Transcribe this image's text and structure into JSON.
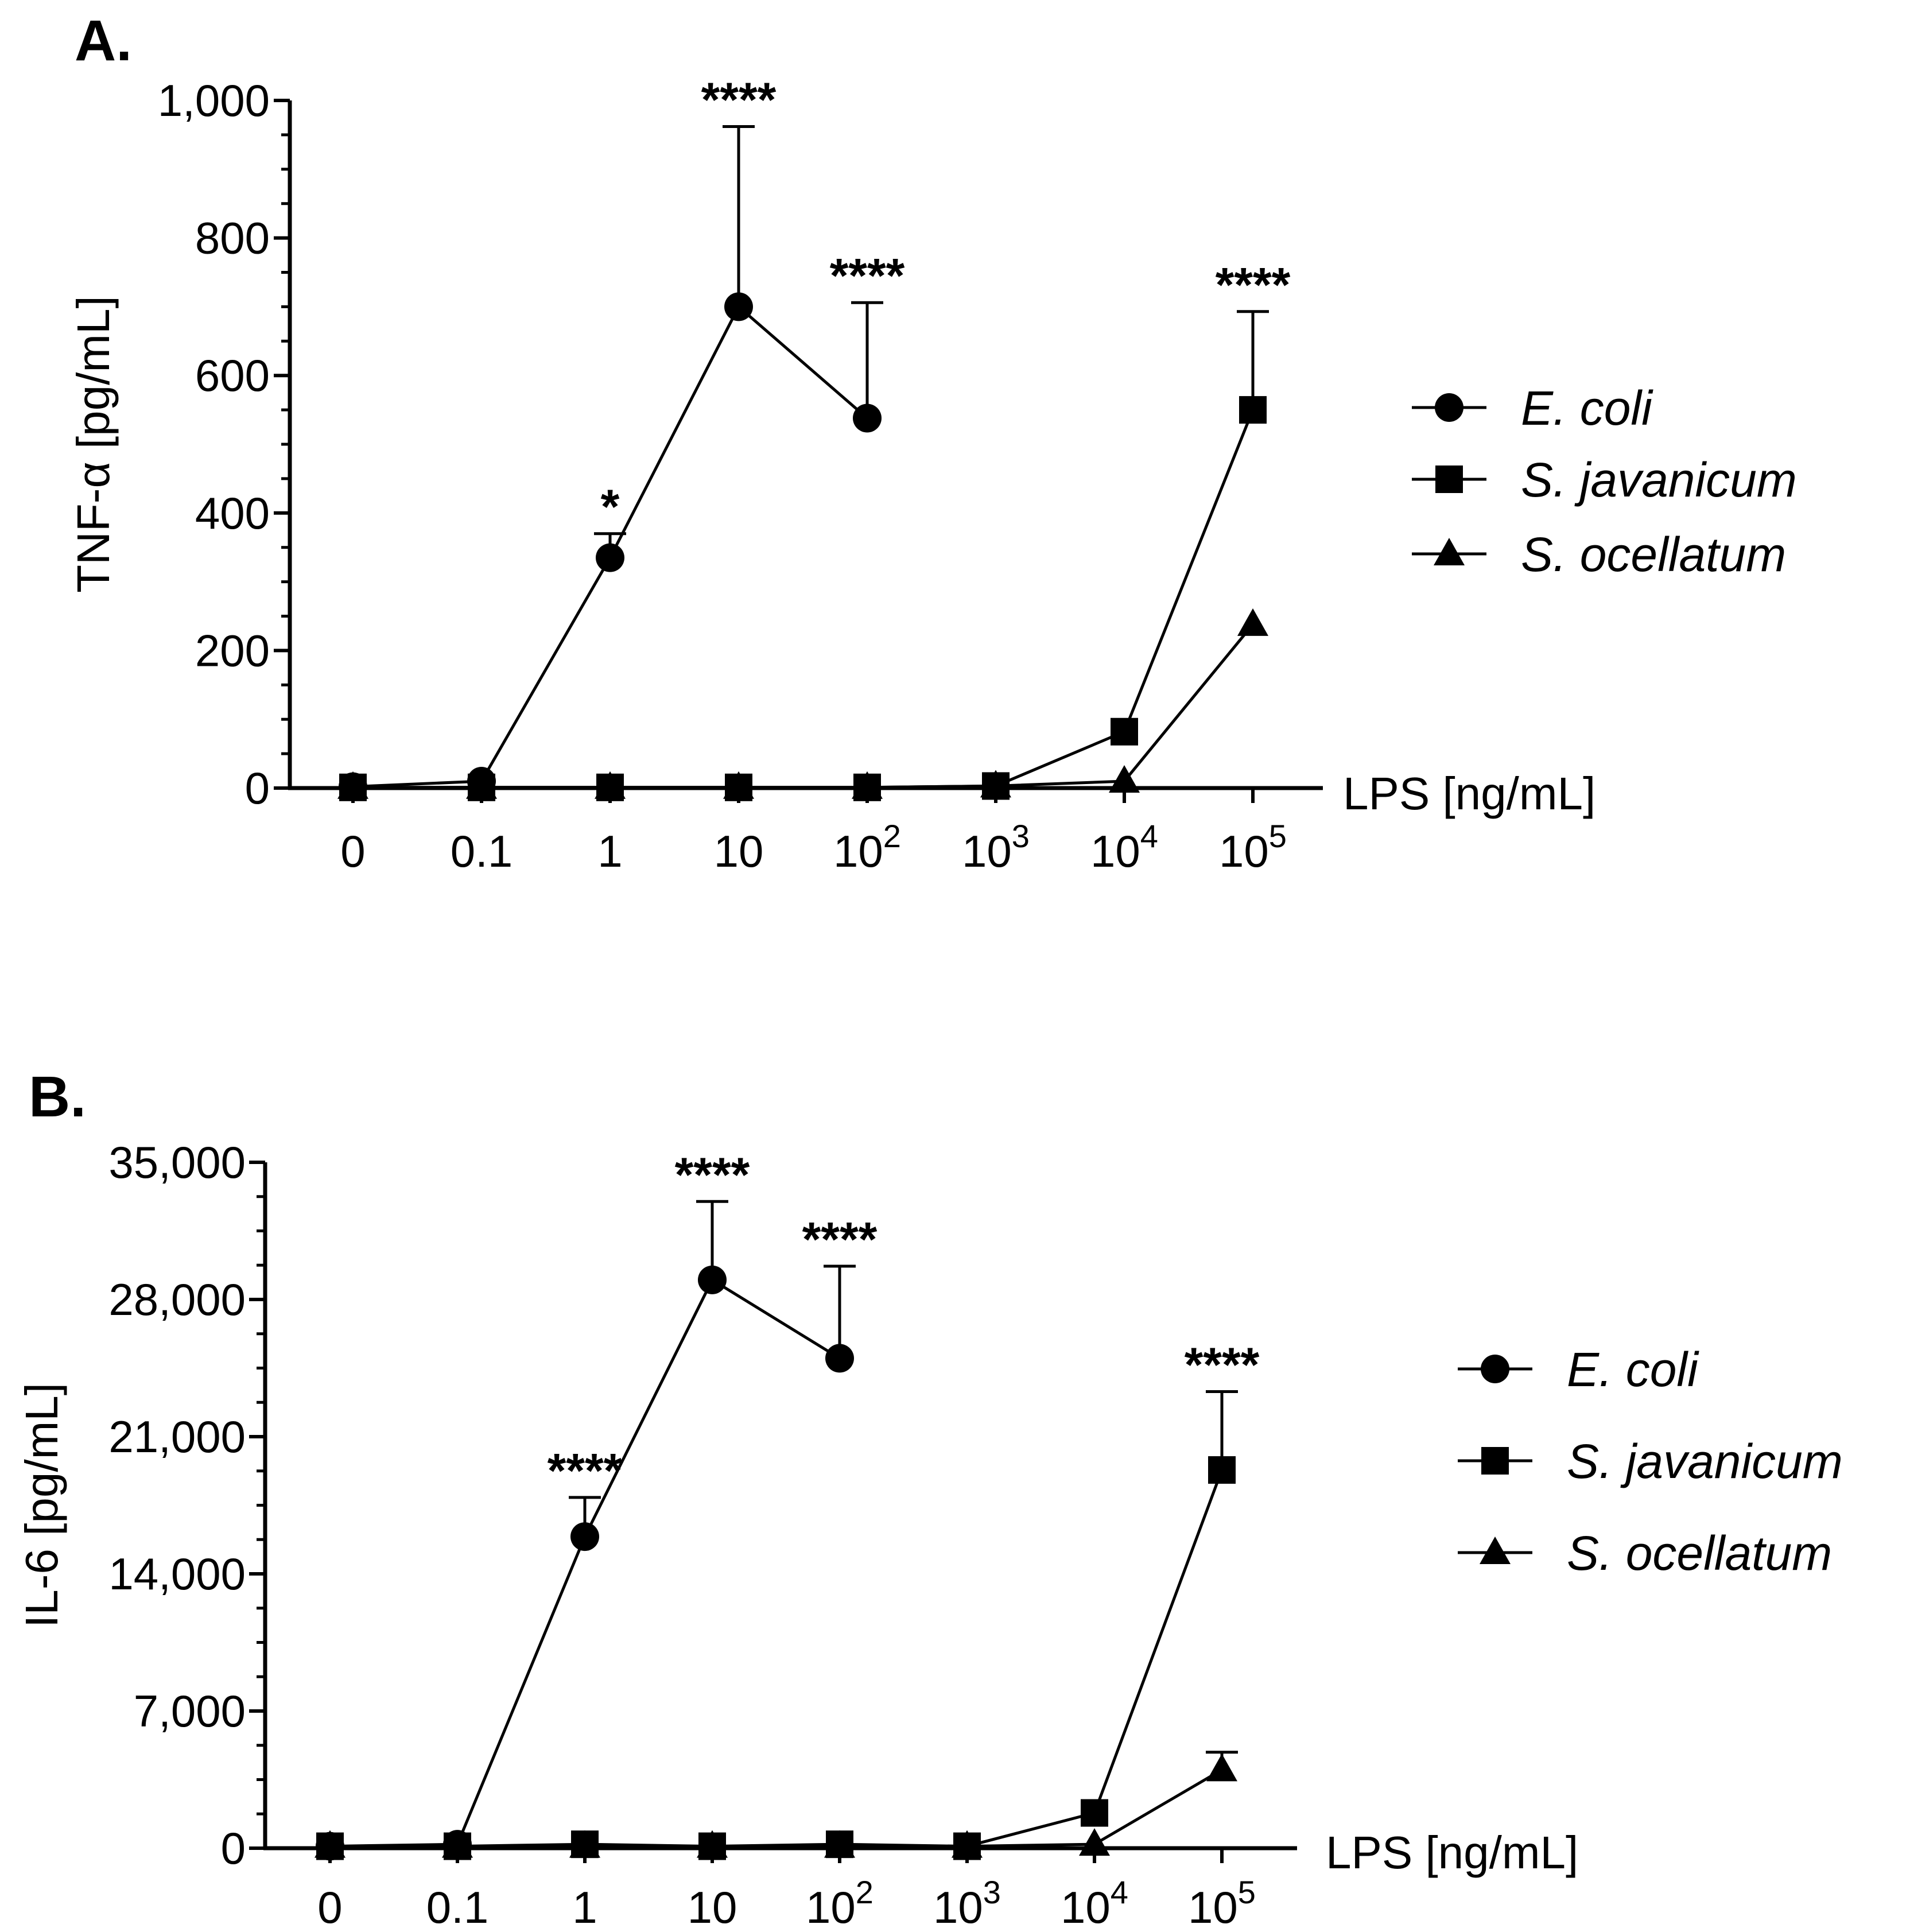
{
  "chart_data": [
    {
      "type": "line",
      "panel": "A.",
      "ylabel": "TNF-α [pg/mL]",
      "xlabel": "LPS [ng/mL]",
      "ylim": [
        0,
        1000
      ],
      "yticks": [
        0,
        200,
        400,
        600,
        800,
        1000
      ],
      "ytick_labels": [
        "0",
        "200",
        "400",
        "600",
        "800",
        "1,000"
      ],
      "categories": [
        {
          "base": "0",
          "sup": ""
        },
        {
          "base": "0.1",
          "sup": ""
        },
        {
          "base": "1",
          "sup": ""
        },
        {
          "base": "10",
          "sup": ""
        },
        {
          "base": "10",
          "sup": "2"
        },
        {
          "base": "10",
          "sup": "3"
        },
        {
          "base": "10",
          "sup": "4"
        },
        {
          "base": "10",
          "sup": "5"
        }
      ],
      "series": [
        {
          "name": "E. coli",
          "marker": "circle",
          "values": [
            2,
            10,
            335,
            700,
            538,
            null,
            null,
            null
          ],
          "errors": [
            null,
            null,
            35,
            262,
            168,
            null,
            null,
            null
          ]
        },
        {
          "name": "S. javanicum",
          "marker": "square",
          "values": [
            1,
            1,
            1,
            1,
            1,
            3,
            82,
            550
          ],
          "errors": [
            null,
            null,
            null,
            null,
            null,
            null,
            null,
            143
          ]
        },
        {
          "name": "S. ocellatum",
          "marker": "triangle",
          "values": [
            1,
            1,
            1,
            1,
            1,
            3,
            10,
            238
          ],
          "errors": [
            null,
            null,
            null,
            null,
            null,
            null,
            null,
            null
          ]
        }
      ],
      "annotations": [
        {
          "category_index": 2,
          "value": 370,
          "text": "*"
        },
        {
          "category_index": 3,
          "value": 962,
          "text": "****"
        },
        {
          "category_index": 4,
          "value": 706,
          "text": "****"
        },
        {
          "category_index": 7,
          "value": 693,
          "text": "****"
        }
      ]
    },
    {
      "type": "line",
      "panel": "B.",
      "ylabel": "IL-6 [pg/mL]",
      "xlabel": "LPS [ng/mL]",
      "ylim": [
        0,
        35000
      ],
      "yticks": [
        0,
        7000,
        14000,
        21000,
        28000,
        35000
      ],
      "ytick_labels": [
        "0",
        "7,000",
        "14,000",
        "21,000",
        "28,000",
        "35,000"
      ],
      "categories": [
        {
          "base": "0",
          "sup": ""
        },
        {
          "base": "0.1",
          "sup": ""
        },
        {
          "base": "1",
          "sup": ""
        },
        {
          "base": "10",
          "sup": ""
        },
        {
          "base": "10",
          "sup": "2"
        },
        {
          "base": "10",
          "sup": "3"
        },
        {
          "base": "10",
          "sup": "4"
        },
        {
          "base": "10",
          "sup": "5"
        }
      ],
      "series": [
        {
          "name": "E. coli",
          "marker": "circle",
          "values": [
            100,
            200,
            15900,
            29000,
            25000,
            null,
            null,
            null
          ],
          "errors": [
            null,
            null,
            2000,
            4000,
            4700,
            null,
            null,
            null
          ]
        },
        {
          "name": "S. javanicum",
          "marker": "square",
          "values": [
            100,
            100,
            200,
            100,
            200,
            100,
            1800,
            19300
          ],
          "errors": [
            null,
            null,
            null,
            null,
            null,
            null,
            null,
            4000
          ]
        },
        {
          "name": "S. ocellatum",
          "marker": "triangle",
          "values": [
            100,
            100,
            100,
            100,
            100,
            100,
            200,
            4000
          ],
          "errors": [
            null,
            null,
            null,
            null,
            null,
            null,
            null,
            900
          ]
        }
      ],
      "annotations": [
        {
          "category_index": 2,
          "value": 17900,
          "text": "****"
        },
        {
          "category_index": 3,
          "value": 33000,
          "text": "****"
        },
        {
          "category_index": 4,
          "value": 29700,
          "text": "****"
        },
        {
          "category_index": 7,
          "value": 23300,
          "text": "****"
        }
      ]
    }
  ]
}
